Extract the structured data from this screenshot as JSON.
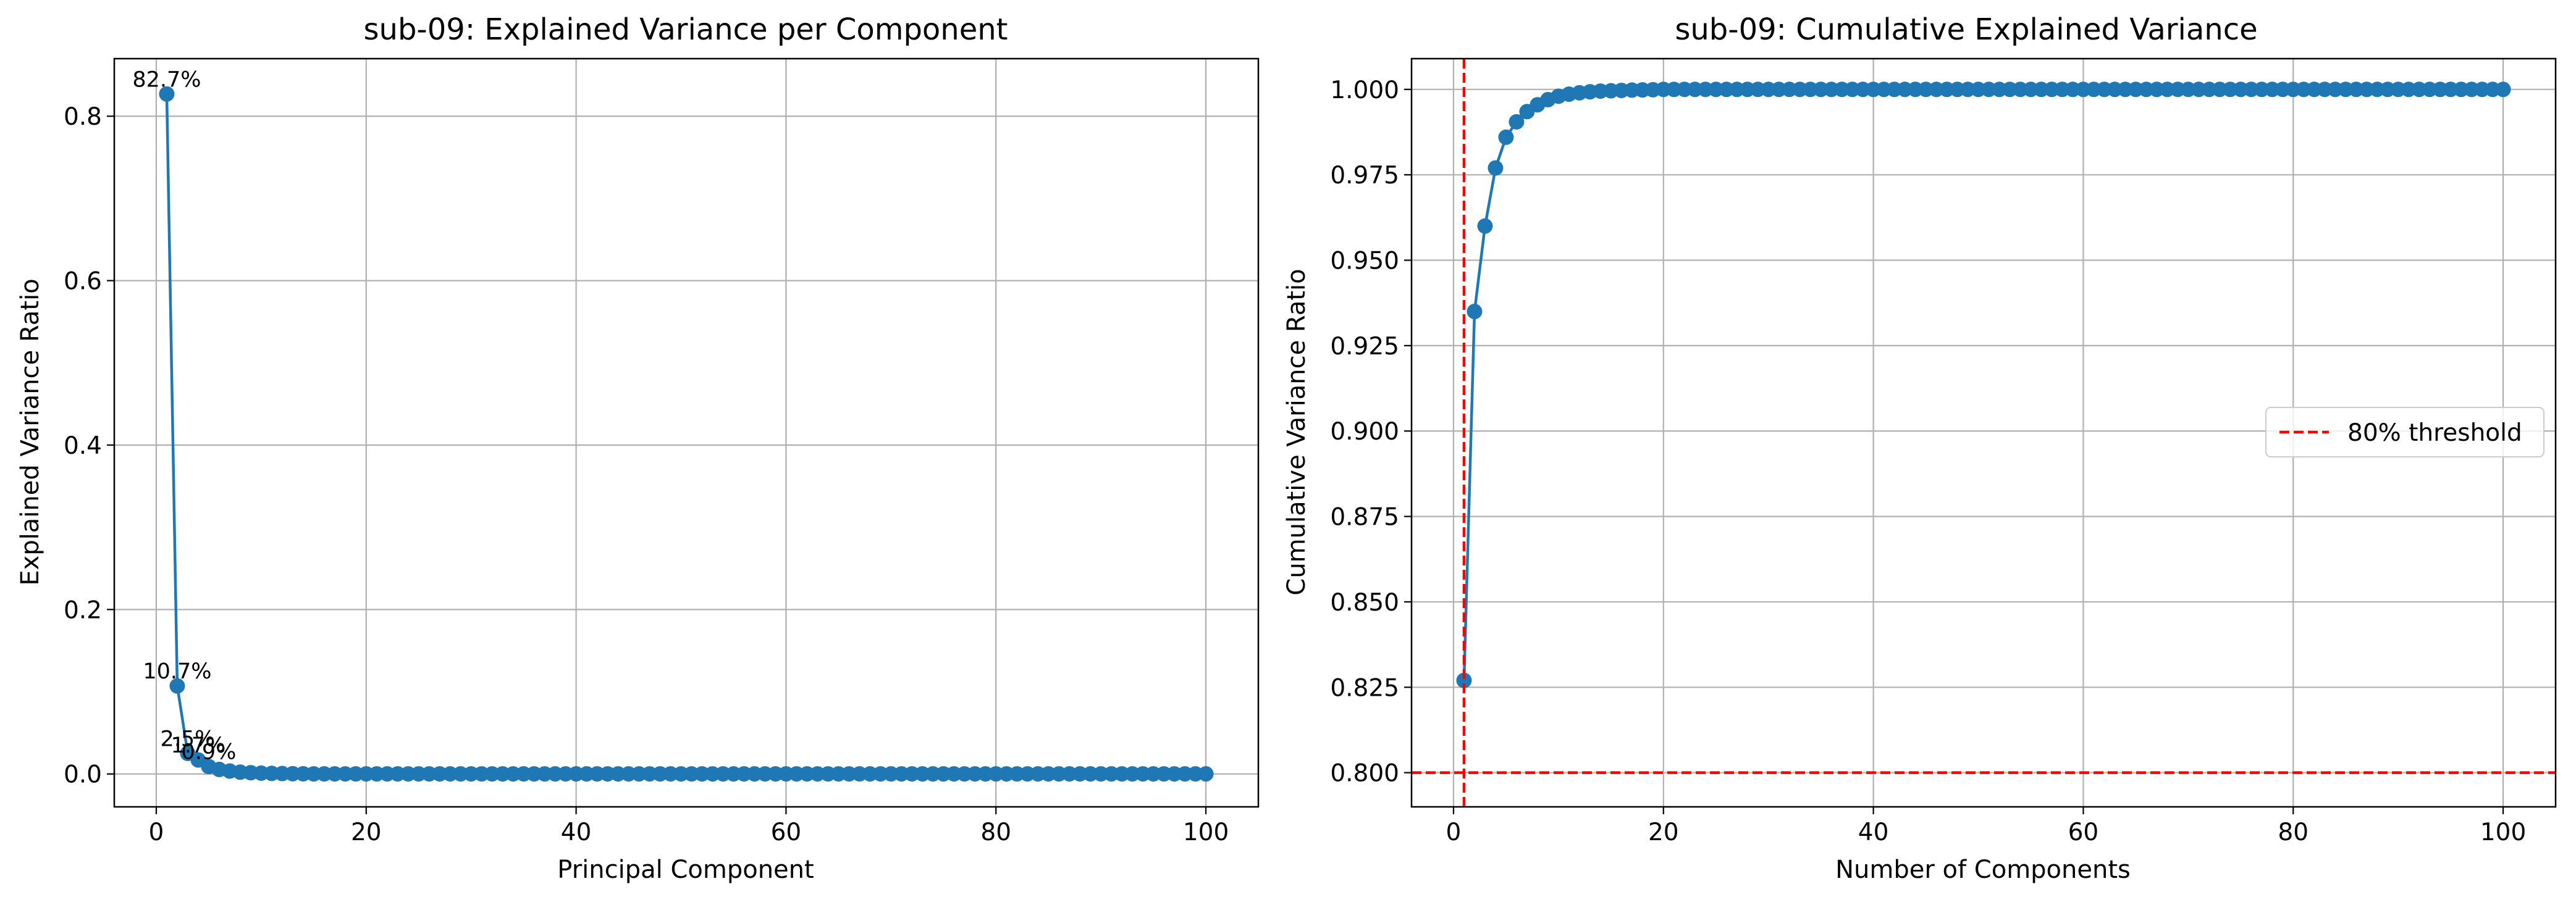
{
  "chart_data": [
    {
      "type": "line",
      "title": "sub-09: Explained Variance per Component",
      "xlabel": "Principal Component",
      "ylabel": "Explained Variance Ratio",
      "xlim": [
        -4,
        105
      ],
      "ylim": [
        -0.04,
        0.87
      ],
      "x_ticks": [
        0,
        20,
        40,
        60,
        80,
        100
      ],
      "x_tick_labels": [
        "0",
        "20",
        "40",
        "60",
        "80",
        "100"
      ],
      "y_ticks": [
        0.0,
        0.2,
        0.4,
        0.6,
        0.8
      ],
      "y_tick_labels": [
        "0.0",
        "0.2",
        "0.4",
        "0.6",
        "0.8"
      ],
      "grid": true,
      "markers": true,
      "series": [
        {
          "color": "#1f77b4",
          "x_start": 1,
          "x_end": 100,
          "values_head": [
            0.827,
            0.107,
            0.025,
            0.017,
            0.009,
            0.0055,
            0.0035,
            0.0022,
            0.0015,
            0.001,
            0.0007,
            0.0005,
            0.0003,
            0.0002
          ],
          "tail_value": 0.0001
        }
      ],
      "annotations": [
        {
          "x": 1,
          "y": 0.827,
          "text": "82.7%"
        },
        {
          "x": 2,
          "y": 0.107,
          "text": "10.7%"
        },
        {
          "x": 3,
          "y": 0.025,
          "text": "2.5%"
        },
        {
          "x": 4,
          "y": 0.017,
          "text": "1.7%"
        },
        {
          "x": 5,
          "y": 0.009,
          "text": "0.9%"
        }
      ]
    },
    {
      "type": "line",
      "title": "sub-09: Cumulative Explained Variance",
      "xlabel": "Number of Components",
      "ylabel": "Cumulative Variance Ratio",
      "xlim": [
        -4,
        105
      ],
      "ylim": [
        0.79,
        1.009
      ],
      "x_ticks": [
        0,
        20,
        40,
        60,
        80,
        100
      ],
      "x_tick_labels": [
        "0",
        "20",
        "40",
        "60",
        "80",
        "100"
      ],
      "y_ticks": [
        0.8,
        0.825,
        0.85,
        0.875,
        0.9,
        0.925,
        0.95,
        0.975,
        1.0
      ],
      "y_tick_labels": [
        "0.800",
        "0.825",
        "0.850",
        "0.875",
        "0.900",
        "0.925",
        "0.950",
        "0.975",
        "1.000"
      ],
      "grid": true,
      "markers": true,
      "series": [
        {
          "color": "#1f77b4",
          "x_start": 1,
          "x_end": 100,
          "values_head": [
            0.827,
            0.935,
            0.96,
            0.977,
            0.986,
            0.9905,
            0.9935,
            0.9955,
            0.997,
            0.998,
            0.9986,
            0.999,
            0.9993,
            0.9995,
            0.9996,
            0.9997,
            0.9998,
            0.99985,
            0.9999
          ],
          "tail_value": 1.0
        }
      ],
      "reference_lines": [
        {
          "orientation": "horizontal",
          "value": 0.8,
          "color": "#ff0000",
          "style": "dashed",
          "legend": "80% threshold"
        },
        {
          "orientation": "vertical",
          "value": 1,
          "color": "#ff0000",
          "style": "dashed"
        }
      ],
      "legend": {
        "location": "center-right",
        "entries": [
          "80% threshold"
        ]
      }
    }
  ]
}
